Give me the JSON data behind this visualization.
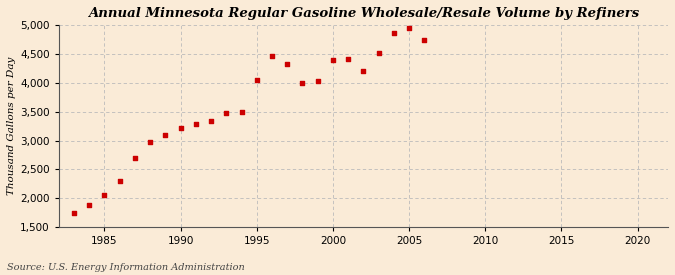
{
  "title": "Annual Minnesota Regular Gasoline Wholesale/Resale Volume by Refiners",
  "ylabel": "Thousand Gallons per Day",
  "source": "Source: U.S. Energy Information Administration",
  "background_color": "#faebd7",
  "data": [
    [
      1983,
      1750
    ],
    [
      1984,
      1880
    ],
    [
      1985,
      2050
    ],
    [
      1986,
      2300
    ],
    [
      1987,
      2700
    ],
    [
      1988,
      2970
    ],
    [
      1989,
      3090
    ],
    [
      1990,
      3220
    ],
    [
      1991,
      3290
    ],
    [
      1992,
      3340
    ],
    [
      1993,
      3480
    ],
    [
      1994,
      3500
    ],
    [
      1995,
      4050
    ],
    [
      1996,
      4470
    ],
    [
      1997,
      4330
    ],
    [
      1998,
      4000
    ],
    [
      1999,
      4040
    ],
    [
      2000,
      4390
    ],
    [
      2001,
      4420
    ],
    [
      2002,
      4200
    ],
    [
      2003,
      4520
    ],
    [
      2004,
      4860
    ],
    [
      2005,
      4960
    ],
    [
      2006,
      4740
    ]
  ],
  "xlim": [
    1982,
    2022
  ],
  "ylim": [
    1500,
    5000
  ],
  "xticks": [
    1985,
    1990,
    1995,
    2000,
    2005,
    2010,
    2015,
    2020
  ],
  "yticks": [
    1500,
    2000,
    2500,
    3000,
    3500,
    4000,
    4500,
    5000
  ],
  "marker_color": "#cc0000",
  "marker": "s",
  "marker_size": 3.5,
  "grid_color": "#bbbbbb",
  "title_fontsize": 9.5,
  "label_fontsize": 7.5,
  "tick_fontsize": 7.5,
  "source_fontsize": 7.0
}
